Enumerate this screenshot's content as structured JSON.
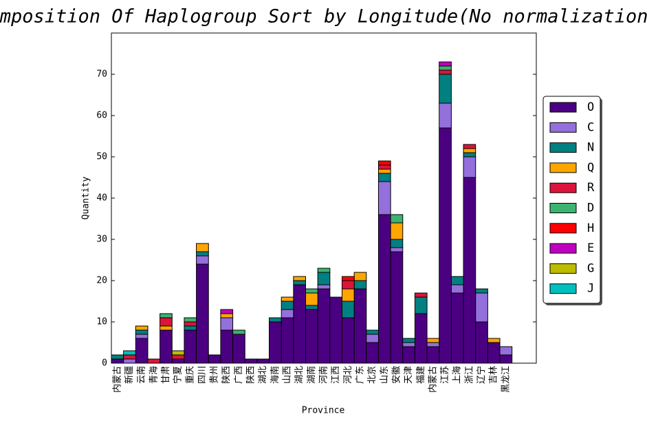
{
  "chart_data": {
    "type": "bar",
    "stacked": true,
    "title": "Composition Of Haplogroup  Sort by Longitude(No normalization)",
    "x_label": "Province",
    "y_label": "Quantity",
    "categories": [
      "内蒙古",
      "新疆",
      "云南",
      "青海",
      "甘肃",
      "宁夏",
      "重庆",
      "四川",
      "贵州",
      "陕西",
      "广西",
      "陕西",
      "湖北",
      "海南",
      "山西",
      "湖北",
      "湖南",
      "河南",
      "江西",
      "河北",
      "广东",
      "北京",
      "山东",
      "安徽",
      "天津",
      "福建",
      "内蒙古",
      "江苏",
      "上海",
      "浙江",
      "辽宁",
      "吉林",
      "黑龙江"
    ],
    "series": [
      {
        "name": "O",
        "color": "#4b0082",
        "values": [
          1,
          0,
          6,
          0,
          8,
          1,
          8,
          24,
          2,
          8,
          7,
          1,
          1,
          10,
          11,
          19,
          13,
          18,
          16,
          11,
          18,
          5,
          36,
          27,
          4,
          12,
          4,
          57,
          17,
          45,
          10,
          5,
          2
        ]
      },
      {
        "name": "C",
        "color": "#9370db",
        "values": [
          0,
          1,
          1,
          0,
          0,
          0,
          0,
          2,
          0,
          3,
          0,
          0,
          0,
          0,
          2,
          0,
          0,
          1,
          0,
          0,
          0,
          2,
          8,
          1,
          1,
          0,
          1,
          6,
          2,
          5,
          7,
          0,
          2
        ]
      },
      {
        "name": "N",
        "color": "#008080",
        "values": [
          1,
          0,
          1,
          0,
          0,
          0,
          1,
          1,
          0,
          0,
          0,
          0,
          0,
          1,
          2,
          1,
          1,
          3,
          0,
          4,
          2,
          1,
          2,
          2,
          1,
          4,
          0,
          7,
          2,
          1,
          1,
          0,
          0
        ]
      },
      {
        "name": "Q",
        "color": "#ffa500",
        "values": [
          0,
          0,
          1,
          0,
          1,
          0,
          0,
          2,
          0,
          1,
          0,
          0,
          0,
          0,
          1,
          1,
          3,
          0,
          0,
          3,
          2,
          0,
          1,
          4,
          0,
          0,
          1,
          0,
          0,
          1,
          0,
          1,
          0
        ]
      },
      {
        "name": "R",
        "color": "#dc143c",
        "values": [
          0,
          1,
          0,
          1,
          2,
          1,
          1,
          0,
          0,
          0,
          0,
          0,
          0,
          0,
          0,
          0,
          0,
          0,
          0,
          2,
          0,
          0,
          1,
          0,
          0,
          1,
          0,
          1,
          0,
          1,
          0,
          0,
          0
        ]
      },
      {
        "name": "D",
        "color": "#3cb371",
        "values": [
          0,
          0,
          0,
          0,
          1,
          0,
          1,
          0,
          0,
          0,
          1,
          0,
          0,
          0,
          0,
          0,
          1,
          1,
          0,
          0,
          0,
          0,
          0,
          2,
          0,
          0,
          0,
          1,
          0,
          0,
          0,
          0,
          0
        ]
      },
      {
        "name": "H",
        "color": "#ff0000",
        "values": [
          0,
          0,
          0,
          0,
          0,
          0,
          0,
          0,
          0,
          0,
          0,
          0,
          0,
          0,
          0,
          0,
          0,
          0,
          0,
          1,
          0,
          0,
          1,
          0,
          0,
          0,
          0,
          0,
          0,
          0,
          0,
          0,
          0
        ]
      },
      {
        "name": "E",
        "color": "#c000c0",
        "values": [
          0,
          0,
          0,
          0,
          0,
          0,
          0,
          0,
          0,
          1,
          0,
          0,
          0,
          0,
          0,
          0,
          0,
          0,
          0,
          0,
          0,
          0,
          0,
          0,
          0,
          0,
          0,
          1,
          0,
          0,
          0,
          0,
          0
        ]
      },
      {
        "name": "G",
        "color": "#bdbd00",
        "values": [
          0,
          0,
          0,
          0,
          0,
          1,
          0,
          0,
          0,
          0,
          0,
          0,
          0,
          0,
          0,
          0,
          0,
          0,
          0,
          0,
          0,
          0,
          0,
          0,
          0,
          0,
          0,
          0,
          0,
          0,
          0,
          0,
          0
        ]
      },
      {
        "name": "J",
        "color": "#00bfbf",
        "values": [
          0,
          1,
          0,
          0,
          0,
          0,
          0,
          0,
          0,
          0,
          0,
          0,
          0,
          0,
          0,
          0,
          0,
          0,
          0,
          0,
          0,
          0,
          0,
          0,
          0,
          0,
          0,
          0,
          0,
          0,
          0,
          0,
          0
        ]
      }
    ],
    "ylim": [
      0,
      80
    ],
    "yticks": [
      0,
      10,
      20,
      30,
      40,
      50,
      60,
      70
    ],
    "legend": "right"
  }
}
